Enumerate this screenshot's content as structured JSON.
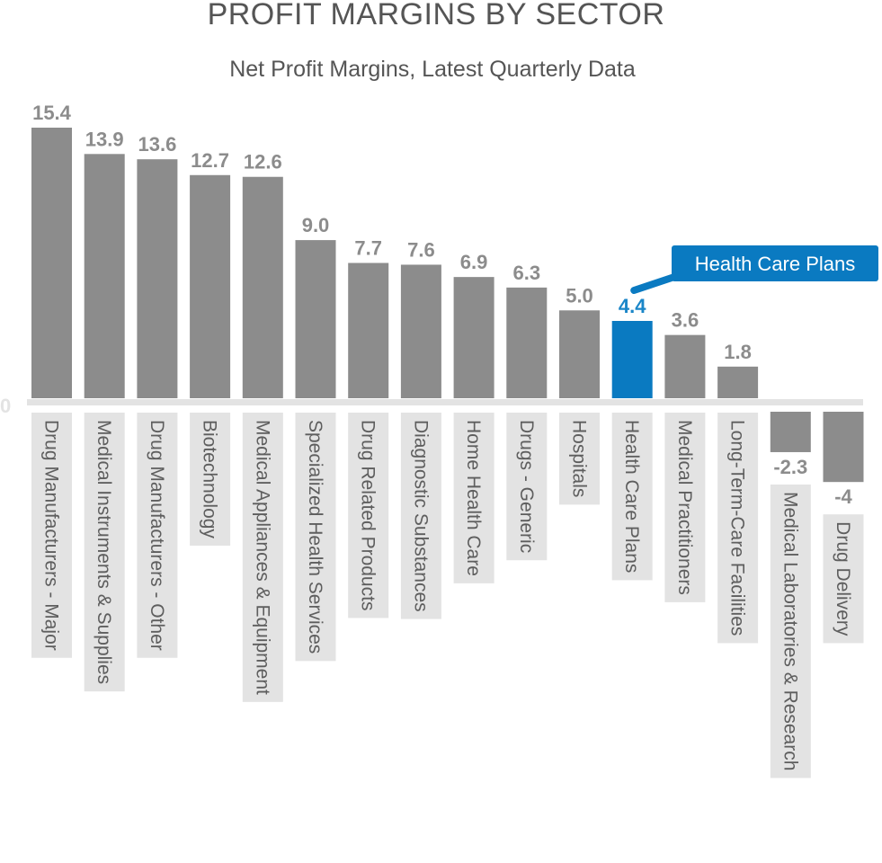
{
  "chart_data": {
    "type": "bar",
    "title": "PROFIT MARGINS BY SECTOR",
    "subtitle": "Net Profit Margins, Latest Quarterly Data",
    "xlabel": "",
    "ylabel": "",
    "zero_label": "0",
    "ylim": [
      -4,
      15.4
    ],
    "grid": false,
    "legend": "none",
    "categories": [
      "Drug Manufacturers - Major",
      "Medical Instruments & Supplies",
      "Drug Manufacturers - Other",
      "Biotechnology",
      "Medical Appliances & Equipment",
      "Specialized Health Services",
      "Drug Related Products",
      "Diagnostic Substances",
      "Home Health Care",
      "Drugs - Generic",
      "Hospitals",
      "Health Care Plans",
      "Medical Practitioners",
      "Long-Term-Care Facilities",
      "Medical Laboratories & Research",
      "Drug Delivery"
    ],
    "values": [
      15.4,
      13.9,
      13.6,
      12.7,
      12.6,
      9.0,
      7.7,
      7.6,
      6.9,
      6.3,
      5.0,
      4.4,
      3.6,
      1.8,
      -2.3,
      -4
    ],
    "value_labels": [
      "15.4",
      "13.9",
      "13.6",
      "12.7",
      "12.6",
      "9.0",
      "7.7",
      "7.6",
      "6.9",
      "6.3",
      "5.0",
      "4.4",
      "3.6",
      "1.8",
      "-2.3",
      "-4"
    ],
    "highlight": {
      "category": "Health Care Plans",
      "callout": "Health Care Plans"
    },
    "colors": {
      "bar": "#8c8c8c",
      "highlight": "#0a7ac1",
      "axis": "#e3e3e3",
      "label_box": "#e3e3e3",
      "callout": "#0a7ac1"
    }
  }
}
